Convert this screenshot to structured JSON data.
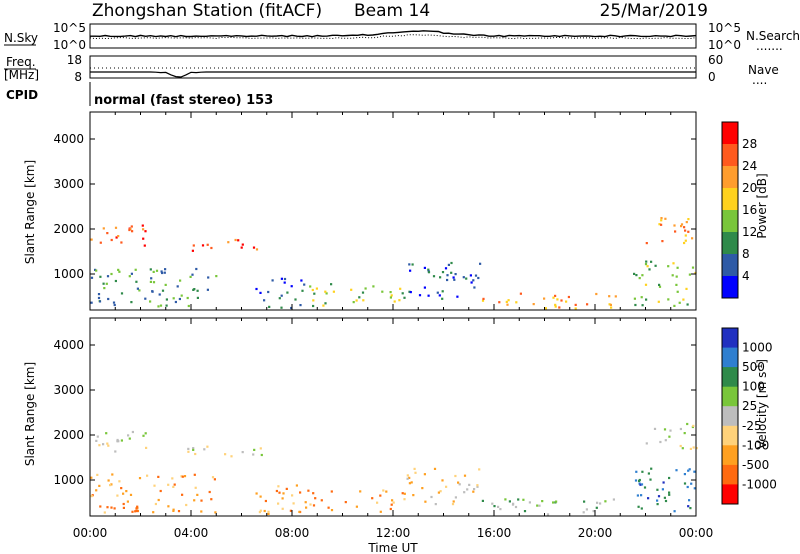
{
  "header": {
    "station": "Zhongshan Station (fitACF)",
    "beam": "Beam 14",
    "date": "25/Mar/2019"
  },
  "noise_panel": {
    "left_label": "N.Sky",
    "left_ticks": [
      "10^5",
      "10^0"
    ],
    "right_ticks": [
      "10^5",
      "10^0"
    ],
    "right_label": "N.Search",
    "right_label_dots": "......."
  },
  "freq_panel": {
    "label_line1": "Freq.",
    "label_line2": "[MHz]",
    "left_ticks": [
      "18",
      "8"
    ],
    "right_ticks": [
      "60",
      "0"
    ],
    "right_label": "Nave",
    "right_label_dots": "...."
  },
  "cpid": {
    "label": "CPID",
    "text": "normal (fast stereo) 153"
  },
  "chart_data": [
    {
      "type": "heatmap",
      "title": "",
      "xlabel": "Time UT",
      "ylabel": "Slant Range [km]",
      "x_tick_labels": [
        "00:00",
        "04:00",
        "08:00",
        "12:00",
        "16:00",
        "20:00",
        "00:00"
      ],
      "xlim_hours": [
        0,
        24
      ],
      "y_ticks": [
        1000,
        2000,
        3000,
        4000
      ],
      "ylim": [
        200,
        4600
      ],
      "colorbar": {
        "label": "Power [dB]",
        "ticks": [
          "28",
          "24",
          "20",
          "16",
          "12",
          "8",
          "4"
        ],
        "colors": [
          "#ff0000",
          "#ff5a1e",
          "#ff9d2e",
          "#ffd21e",
          "#79c63a",
          "#2f8a4a",
          "#2e5aa6",
          "#0000ff"
        ]
      },
      "scatter_regions": [
        {
          "t0": 0.0,
          "t1": 5.0,
          "r0": 300,
          "r1": 1150,
          "level": 5
        },
        {
          "t0": 0.0,
          "t1": 2.3,
          "r0": 1650,
          "r1": 2100,
          "level": 1
        },
        {
          "t0": 3.8,
          "t1": 6.8,
          "r0": 1500,
          "r1": 1800,
          "level": 1
        },
        {
          "t0": 6.5,
          "t1": 8.5,
          "r0": 250,
          "r1": 1000,
          "level": 6
        },
        {
          "t0": 8.5,
          "t1": 12.5,
          "r0": 300,
          "r1": 800,
          "level": 4
        },
        {
          "t0": 12.5,
          "t1": 15.5,
          "r0": 450,
          "r1": 1300,
          "level": 6
        },
        {
          "t0": 15.5,
          "t1": 21.0,
          "r0": 250,
          "r1": 600,
          "level": 2
        },
        {
          "t0": 21.5,
          "t1": 24.0,
          "r0": 300,
          "r1": 1300,
          "level": 4
        },
        {
          "t0": 22.0,
          "t1": 24.0,
          "r0": 1700,
          "r1": 2300,
          "level": 2
        }
      ]
    },
    {
      "type": "heatmap",
      "title": "",
      "xlabel": "Time UT",
      "ylabel": "Slant Range [km]",
      "x_tick_labels": [
        "00:00",
        "04:00",
        "08:00",
        "12:00",
        "16:00",
        "20:00",
        "00:00"
      ],
      "xlim_hours": [
        0,
        24
      ],
      "y_ticks": [
        1000,
        2000,
        3000,
        4000
      ],
      "ylim": [
        200,
        4600
      ],
      "colorbar": {
        "label": "Velocity [m s^-1]",
        "ticks": [
          "1000",
          "500",
          "100",
          "25",
          "-25",
          "-100",
          "-500",
          "-1000"
        ],
        "colors": [
          "#2030c0",
          "#2f7fd0",
          "#2f8a4a",
          "#79c63a",
          "#bdbdbd",
          "#ffd27a",
          "#ffa020",
          "#ff6a10",
          "#ff0000"
        ]
      },
      "scatter_regions": [
        {
          "t0": 0.0,
          "t1": 5.0,
          "r0": 300,
          "r1": 1150,
          "level": 6
        },
        {
          "t0": 0.0,
          "t1": 2.3,
          "r0": 1650,
          "r1": 2100,
          "level": 4
        },
        {
          "t0": 3.8,
          "t1": 6.8,
          "r0": 1500,
          "r1": 1800,
          "level": 4
        },
        {
          "t0": 6.5,
          "t1": 8.5,
          "r0": 250,
          "r1": 1000,
          "level": 6
        },
        {
          "t0": 8.5,
          "t1": 12.5,
          "r0": 300,
          "r1": 800,
          "level": 6
        },
        {
          "t0": 12.5,
          "t1": 15.5,
          "r0": 450,
          "r1": 1300,
          "level": 5
        },
        {
          "t0": 15.5,
          "t1": 21.0,
          "r0": 250,
          "r1": 600,
          "level": 3
        },
        {
          "t0": 21.5,
          "t1": 24.0,
          "r0": 300,
          "r1": 1300,
          "level": 1
        },
        {
          "t0": 22.0,
          "t1": 24.0,
          "r0": 1700,
          "r1": 2300,
          "level": 4
        }
      ]
    }
  ]
}
